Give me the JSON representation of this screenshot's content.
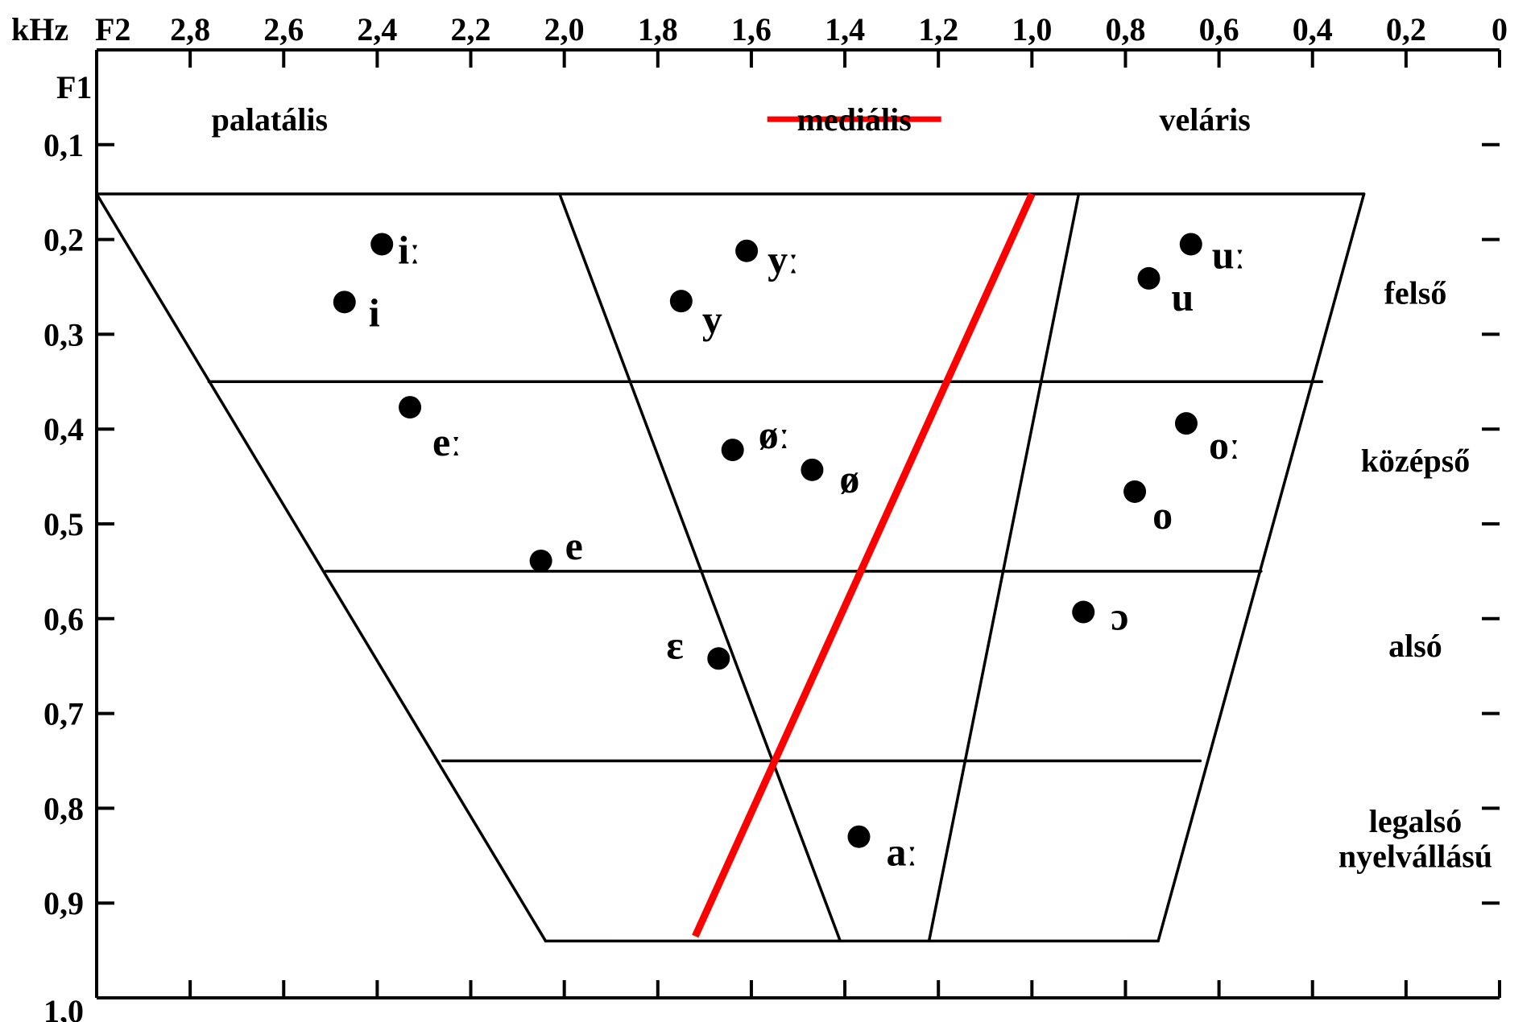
{
  "chart_data": {
    "type": "scatter",
    "title": "",
    "x_unit_label": "kHz",
    "x_axis_label": "F2",
    "y_axis_label": "F1",
    "x_reversed": true,
    "y_reversed": true,
    "xlim": [
      3.0,
      0.0
    ],
    "ylim": [
      0.0,
      1.0
    ],
    "x_ticks": [
      {
        "value": 2.8,
        "label": "2,8"
      },
      {
        "value": 2.6,
        "label": "2,6"
      },
      {
        "value": 2.4,
        "label": "2,4"
      },
      {
        "value": 2.2,
        "label": "2,2"
      },
      {
        "value": 2.0,
        "label": "2,0"
      },
      {
        "value": 1.8,
        "label": "1,8"
      },
      {
        "value": 1.6,
        "label": "1,6"
      },
      {
        "value": 1.4,
        "label": "1,4"
      },
      {
        "value": 1.2,
        "label": "1,2"
      },
      {
        "value": 1.0,
        "label": "1,0"
      },
      {
        "value": 0.8,
        "label": "0,8"
      },
      {
        "value": 0.6,
        "label": "0,6"
      },
      {
        "value": 0.4,
        "label": "0,4"
      },
      {
        "value": 0.2,
        "label": "0,2"
      },
      {
        "value": 0.0,
        "label": "0"
      }
    ],
    "y_ticks": [
      {
        "value": 0.1,
        "label": "0,1"
      },
      {
        "value": 0.2,
        "label": "0,2"
      },
      {
        "value": 0.3,
        "label": "0,3"
      },
      {
        "value": 0.4,
        "label": "0,4"
      },
      {
        "value": 0.5,
        "label": "0,5"
      },
      {
        "value": 0.6,
        "label": "0,6"
      },
      {
        "value": 0.7,
        "label": "0,7"
      },
      {
        "value": 0.8,
        "label": "0,8"
      },
      {
        "value": 0.9,
        "label": "0,9"
      },
      {
        "value": 1.0,
        "label": "1,0"
      }
    ],
    "points": [
      {
        "label": "iː",
        "x": 2.39,
        "y": 0.205
      },
      {
        "label": "i",
        "x": 2.47,
        "y": 0.266
      },
      {
        "label": "eː",
        "x": 2.33,
        "y": 0.377
      },
      {
        "label": "e",
        "x": 2.05,
        "y": 0.539
      },
      {
        "label": "yː",
        "x": 1.61,
        "y": 0.212
      },
      {
        "label": "y",
        "x": 1.75,
        "y": 0.265
      },
      {
        "label": "øː",
        "x": 1.64,
        "y": 0.422
      },
      {
        "label": "ø",
        "x": 1.47,
        "y": 0.443
      },
      {
        "label": "ɛ",
        "x": 1.67,
        "y": 0.642
      },
      {
        "label": "aː",
        "x": 1.37,
        "y": 0.83
      },
      {
        "label": "uː",
        "x": 0.66,
        "y": 0.205
      },
      {
        "label": "u",
        "x": 0.75,
        "y": 0.241
      },
      {
        "label": "oː",
        "x": 0.67,
        "y": 0.394
      },
      {
        "label": "o",
        "x": 0.78,
        "y": 0.466
      },
      {
        "label": "ɔ",
        "x": 0.89,
        "y": 0.593
      }
    ],
    "column_labels": [
      {
        "text": "palatális",
        "x": 2.63,
        "y": 0.085
      },
      {
        "text": "mediális",
        "x": 1.38,
        "y": 0.085,
        "struck_through": true
      },
      {
        "text": "veláris",
        "x": 0.63,
        "y": 0.085
      }
    ],
    "row_labels": [
      {
        "text": "felső",
        "x": 0.18,
        "y": 0.268
      },
      {
        "text": "középső",
        "x": 0.18,
        "y": 0.445
      },
      {
        "text": "alsó",
        "x": 0.18,
        "y": 0.64
      },
      {
        "text": "legalsó",
        "x": 0.18,
        "y": 0.825
      },
      {
        "text": "nyelvállású",
        "x": 0.18,
        "y": 0.862
      }
    ],
    "grid_lines": [
      {
        "name": "top-edge",
        "from": [
          3.0,
          0.152
        ],
        "to": [
          0.29,
          0.152
        ]
      },
      {
        "name": "row-line-1",
        "from": [
          2.76,
          0.35
        ],
        "to": [
          0.38,
          0.35
        ]
      },
      {
        "name": "row-line-2",
        "from": [
          2.51,
          0.55
        ],
        "to": [
          0.51,
          0.55
        ]
      },
      {
        "name": "row-line-3",
        "from": [
          2.26,
          0.75
        ],
        "to": [
          0.64,
          0.75
        ]
      },
      {
        "name": "bottom-edge",
        "from": [
          2.04,
          0.94
        ],
        "to": [
          0.73,
          0.94
        ]
      },
      {
        "name": "left-edge",
        "from": [
          3.0,
          0.152
        ],
        "to": [
          2.04,
          0.94
        ]
      },
      {
        "name": "right-edge",
        "from": [
          0.29,
          0.152
        ],
        "to": [
          0.73,
          0.94
        ]
      },
      {
        "name": "divider-front-central",
        "from": [
          2.01,
          0.152
        ],
        "to": [
          1.41,
          0.94
        ]
      },
      {
        "name": "divider-central-back",
        "from": [
          0.9,
          0.152
        ],
        "to": [
          1.22,
          0.94
        ]
      }
    ],
    "red_line": {
      "from": [
        1.0,
        0.152
      ],
      "to": [
        1.72,
        0.935
      ],
      "color": "#ff0000"
    },
    "grid": false,
    "legend": false
  }
}
